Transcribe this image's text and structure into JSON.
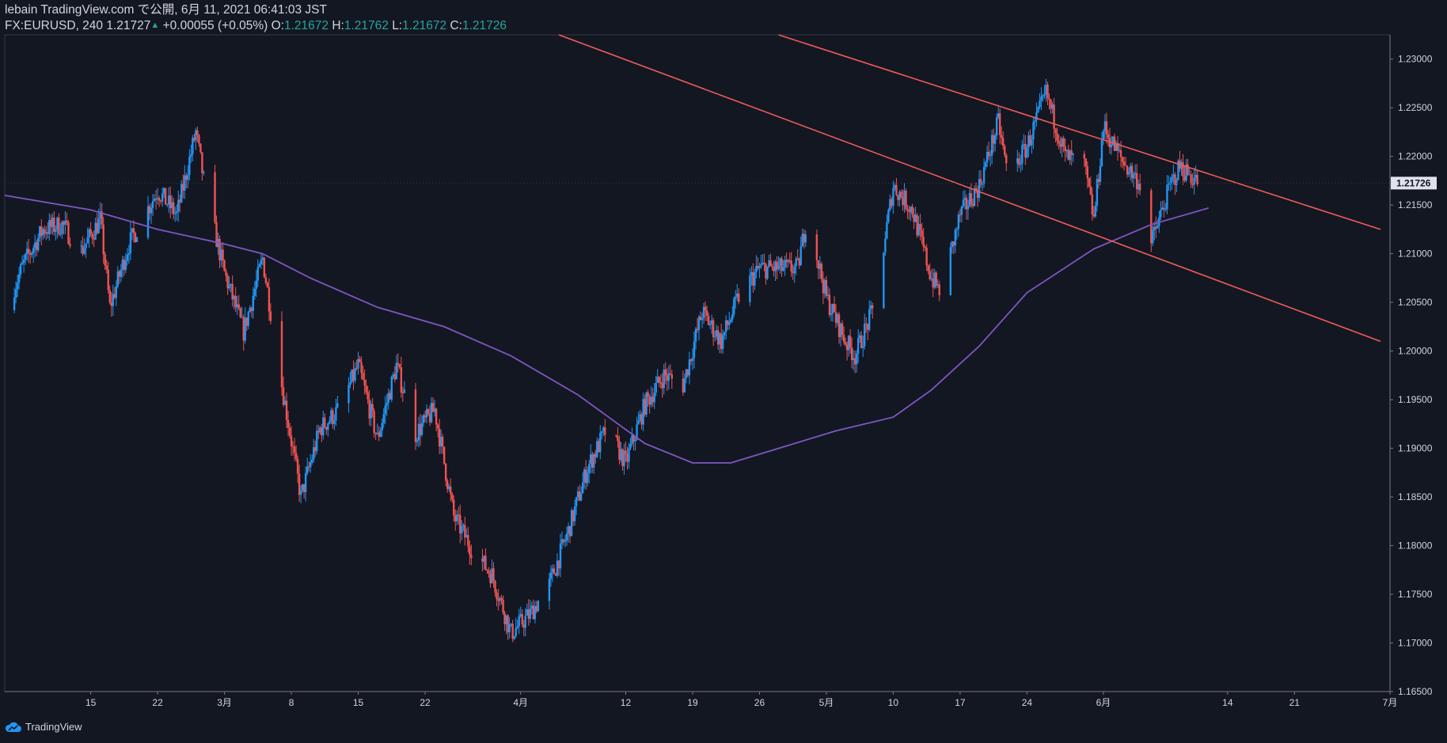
{
  "header": {
    "line1": "lebain TradingView.com で公開, 6月 11, 2021 06:41:03 JST",
    "symbol": "FX:EURUSD, 240",
    "last": "1.21727",
    "change": "+0.00055 (+0.05%)",
    "o_label": "O:",
    "o_value": "1.21672",
    "h_label": "H:",
    "h_value": "1.21762",
    "l_label": "L:",
    "l_value": "1.21672",
    "c_label": "C:",
    "c_value": "1.21726"
  },
  "footer": {
    "brand": "TradingView",
    "logo_icon": "tradingview-cloud-icon"
  },
  "colors": {
    "background": "#131722",
    "up_candle": "#2196f3",
    "down_candle": "#ef5350",
    "moving_average": "#7e57c2",
    "trendline": "#f05a5a",
    "text": "#d1d4dc",
    "accent": "#26a69a"
  },
  "chart_data": {
    "type": "line",
    "series_style": "candlestick",
    "xlabel": "",
    "ylabel": "",
    "ylim": [
      1.165,
      1.2325
    ],
    "y_ticks": [
      "1.23000",
      "1.22500",
      "1.22000",
      "1.21500",
      "1.21000",
      "1.20500",
      "1.20000",
      "1.19500",
      "1.19000",
      "1.18500",
      "1.18000",
      "1.17500",
      "1.17000",
      "1.16500"
    ],
    "x_ticks": [
      {
        "date": "2021-02-15",
        "label": "15"
      },
      {
        "date": "2021-02-22",
        "label": "22"
      },
      {
        "date": "2021-03-01",
        "label": "3月"
      },
      {
        "date": "2021-03-08",
        "label": "8"
      },
      {
        "date": "2021-03-15",
        "label": "15"
      },
      {
        "date": "2021-03-22",
        "label": "22"
      },
      {
        "date": "2021-04-01",
        "label": "4月"
      },
      {
        "date": "2021-04-12",
        "label": "12"
      },
      {
        "date": "2021-04-19",
        "label": "19"
      },
      {
        "date": "2021-04-26",
        "label": "26"
      },
      {
        "date": "2021-05-03",
        "label": "5月"
      },
      {
        "date": "2021-05-10",
        "label": "10"
      },
      {
        "date": "2021-05-17",
        "label": "17"
      },
      {
        "date": "2021-05-24",
        "label": "24"
      },
      {
        "date": "2021-06-01",
        "label": "6月"
      },
      {
        "date": "2021-06-14",
        "label": "14"
      },
      {
        "date": "2021-06-21",
        "label": "21"
      },
      {
        "date": "2021-07-01",
        "label": "7月"
      }
    ],
    "xlim": [
      "2021-02-06",
      "2021-07-01"
    ],
    "last_price_label": "1.21726",
    "price_path": [
      {
        "date": "2021-02-06",
        "close": 1.2042
      },
      {
        "date": "2021-02-08",
        "close": 1.209
      },
      {
        "date": "2021-02-10",
        "close": 1.2125
      },
      {
        "date": "2021-02-12",
        "close": 1.213
      },
      {
        "date": "2021-02-14",
        "close": 1.2103
      },
      {
        "date": "2021-02-16",
        "close": 1.2135
      },
      {
        "date": "2021-02-17",
        "close": 1.2045
      },
      {
        "date": "2021-02-19",
        "close": 1.211
      },
      {
        "date": "2021-02-22",
        "close": 1.2165
      },
      {
        "date": "2021-02-24",
        "close": 1.214
      },
      {
        "date": "2021-02-26",
        "close": 1.2225
      },
      {
        "date": "2021-02-27",
        "close": 1.2165
      },
      {
        "date": "2021-03-01",
        "close": 1.208
      },
      {
        "date": "2021-03-03",
        "close": 1.202
      },
      {
        "date": "2021-03-05",
        "close": 1.2095
      },
      {
        "date": "2021-03-07",
        "close": 1.1965
      },
      {
        "date": "2021-03-09",
        "close": 1.185
      },
      {
        "date": "2021-03-11",
        "close": 1.192
      },
      {
        "date": "2021-03-13",
        "close": 1.194
      },
      {
        "date": "2021-03-15",
        "close": 1.1985
      },
      {
        "date": "2021-03-17",
        "close": 1.191
      },
      {
        "date": "2021-03-19",
        "close": 1.1985
      },
      {
        "date": "2021-03-21",
        "close": 1.1915
      },
      {
        "date": "2021-03-23",
        "close": 1.194
      },
      {
        "date": "2021-03-25",
        "close": 1.183
      },
      {
        "date": "2021-03-27",
        "close": 1.1795
      },
      {
        "date": "2021-03-29",
        "close": 1.177
      },
      {
        "date": "2021-03-31",
        "close": 1.171
      },
      {
        "date": "2021-04-02",
        "close": 1.173
      },
      {
        "date": "2021-04-04",
        "close": 1.176
      },
      {
        "date": "2021-04-06",
        "close": 1.1815
      },
      {
        "date": "2021-04-08",
        "close": 1.188
      },
      {
        "date": "2021-04-10",
        "close": 1.192
      },
      {
        "date": "2021-04-12",
        "close": 1.1885
      },
      {
        "date": "2021-04-14",
        "close": 1.1945
      },
      {
        "date": "2021-04-16",
        "close": 1.1975
      },
      {
        "date": "2021-04-18",
        "close": 1.1965
      },
      {
        "date": "2021-04-20",
        "close": 1.204
      },
      {
        "date": "2021-04-22",
        "close": 1.201
      },
      {
        "date": "2021-04-24",
        "close": 1.206
      },
      {
        "date": "2021-04-26",
        "close": 1.2085
      },
      {
        "date": "2021-04-28",
        "close": 1.2085
      },
      {
        "date": "2021-04-30",
        "close": 1.2085
      },
      {
        "date": "2021-05-01",
        "close": 1.214
      },
      {
        "date": "2021-05-03",
        "close": 1.2055
      },
      {
        "date": "2021-05-05",
        "close": 1.201
      },
      {
        "date": "2021-05-06",
        "close": 1.1995
      },
      {
        "date": "2021-05-08",
        "close": 1.2045
      },
      {
        "date": "2021-05-10",
        "close": 1.217
      },
      {
        "date": "2021-05-12",
        "close": 1.2145
      },
      {
        "date": "2021-05-14",
        "close": 1.2075
      },
      {
        "date": "2021-05-15",
        "close": 1.206
      },
      {
        "date": "2021-05-17",
        "close": 1.214
      },
      {
        "date": "2021-05-19",
        "close": 1.217
      },
      {
        "date": "2021-05-21",
        "close": 1.2235
      },
      {
        "date": "2021-05-22",
        "close": 1.218
      },
      {
        "date": "2021-05-24",
        "close": 1.221
      },
      {
        "date": "2021-05-26",
        "close": 1.2265
      },
      {
        "date": "2021-05-28",
        "close": 1.22
      },
      {
        "date": "2021-05-30",
        "close": 1.219
      },
      {
        "date": "2021-05-31",
        "close": 1.2135
      },
      {
        "date": "2021-06-01",
        "close": 1.223
      },
      {
        "date": "2021-06-03",
        "close": 1.2195
      },
      {
        "date": "2021-06-05",
        "close": 1.217
      },
      {
        "date": "2021-06-06",
        "close": 1.211
      },
      {
        "date": "2021-06-08",
        "close": 1.217
      },
      {
        "date": "2021-06-09",
        "close": 1.219
      },
      {
        "date": "2021-06-11",
        "close": 1.2173
      }
    ],
    "moving_average": [
      {
        "date": "2021-02-06",
        "value": 1.216
      },
      {
        "date": "2021-02-15",
        "value": 1.2145
      },
      {
        "date": "2021-02-22",
        "value": 1.2125
      },
      {
        "date": "2021-03-01",
        "value": 1.211
      },
      {
        "date": "2021-03-05",
        "value": 1.21
      },
      {
        "date": "2021-03-10",
        "value": 1.2075
      },
      {
        "date": "2021-03-17",
        "value": 1.2045
      },
      {
        "date": "2021-03-24",
        "value": 1.2025
      },
      {
        "date": "2021-03-31",
        "value": 1.1995
      },
      {
        "date": "2021-04-07",
        "value": 1.1955
      },
      {
        "date": "2021-04-14",
        "value": 1.1905
      },
      {
        "date": "2021-04-19",
        "value": 1.1885
      },
      {
        "date": "2021-04-23",
        "value": 1.1885
      },
      {
        "date": "2021-04-28",
        "value": 1.19
      },
      {
        "date": "2021-05-04",
        "value": 1.1918
      },
      {
        "date": "2021-05-10",
        "value": 1.1932
      },
      {
        "date": "2021-05-14",
        "value": 1.196
      },
      {
        "date": "2021-05-19",
        "value": 1.2005
      },
      {
        "date": "2021-05-24",
        "value": 1.206
      },
      {
        "date": "2021-05-31",
        "value": 1.2105
      },
      {
        "date": "2021-06-06",
        "value": 1.213
      },
      {
        "date": "2021-06-12",
        "value": 1.2147
      }
    ],
    "trendlines": [
      {
        "name": "upper",
        "points": [
          {
            "date": "2021-04-28",
            "price": 1.2335
          },
          {
            "date": "2021-06-30",
            "price": 1.2125
          }
        ]
      },
      {
        "name": "lower",
        "points": [
          {
            "date": "2021-04-05",
            "price": 1.2335
          },
          {
            "date": "2021-06-30",
            "price": 1.201
          }
        ]
      }
    ],
    "grid": false,
    "legend": "none"
  }
}
